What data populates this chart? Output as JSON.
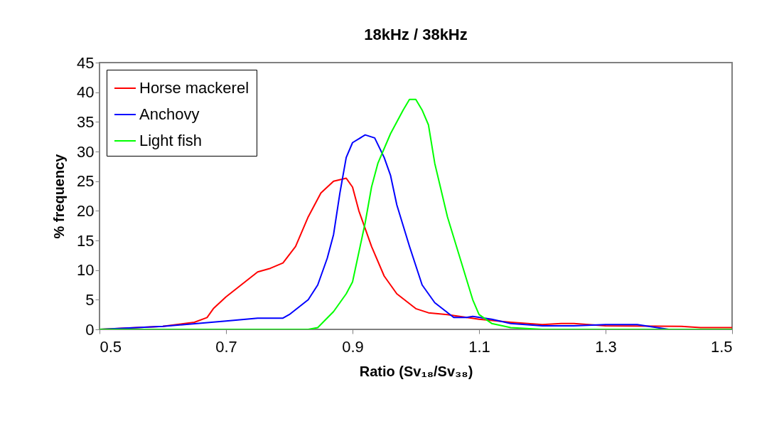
{
  "chart_data": {
    "type": "line",
    "title": "18kHz / 38kHz",
    "xlabel": "Ratio (Sv₁₈/Sv₃₈)",
    "ylabel": "% frequency",
    "xlim": [
      0.5,
      1.5
    ],
    "xticks": [
      0.5,
      0.7,
      0.9,
      1.1,
      1.3,
      1.5
    ],
    "ylim": [
      0,
      45
    ],
    "yticks": [
      0,
      5,
      10,
      15,
      20,
      25,
      30,
      35,
      40,
      45
    ],
    "grid": false,
    "legend": "top left",
    "marker": "none",
    "line_style": "solid",
    "series": [
      {
        "name": "Horse mackerel",
        "color": "#ff0000",
        "x": [
          0.5,
          0.6,
          0.65,
          0.67,
          0.68,
          0.7,
          0.75,
          0.77,
          0.79,
          0.81,
          0.83,
          0.85,
          0.87,
          0.89,
          0.9,
          0.91,
          0.93,
          0.95,
          0.97,
          1.0,
          1.02,
          1.05,
          1.1,
          1.15,
          1.2,
          1.23,
          1.25,
          1.3,
          1.42,
          1.45,
          1.5
        ],
        "values": [
          0,
          0.5,
          1.2,
          2,
          3.5,
          5.5,
          9.7,
          10.3,
          11.2,
          14,
          19,
          23,
          25,
          25.5,
          24,
          20,
          14,
          9,
          6,
          3.5,
          2.8,
          2.5,
          1.7,
          1.2,
          0.8,
          1,
          1,
          0.6,
          0.5,
          0.3,
          0.3
        ]
      },
      {
        "name": "Anchovy",
        "color": "#0000ff",
        "x": [
          0.5,
          0.6,
          0.7,
          0.75,
          0.79,
          0.8,
          0.83,
          0.845,
          0.86,
          0.87,
          0.88,
          0.89,
          0.9,
          0.92,
          0.935,
          0.95,
          0.96,
          0.97,
          0.99,
          1.01,
          1.03,
          1.06,
          1.08,
          1.09,
          1.12,
          1.15,
          1.2,
          1.25,
          1.3,
          1.35,
          1.4,
          1.5
        ],
        "values": [
          0,
          0.5,
          1.4,
          1.9,
          1.9,
          2.5,
          5,
          7.5,
          12,
          16,
          23,
          29,
          31.5,
          32.8,
          32.3,
          29,
          26,
          21,
          14,
          7.5,
          4.5,
          2,
          2,
          2.2,
          1.7,
          1,
          0.6,
          0.6,
          0.8,
          0.8,
          0,
          0
        ]
      },
      {
        "name": "Light fish",
        "color": "#00ff00",
        "x": [
          0.5,
          0.83,
          0.845,
          0.87,
          0.89,
          0.9,
          0.92,
          0.93,
          0.94,
          0.96,
          0.98,
          0.99,
          1.0,
          1.01,
          1.02,
          1.03,
          1.05,
          1.07,
          1.09,
          1.1,
          1.12,
          1.15,
          1.2,
          1.5
        ],
        "values": [
          0,
          0,
          0.3,
          3,
          6,
          8,
          18,
          24,
          28,
          33,
          37,
          38.8,
          38.8,
          37,
          34.5,
          28,
          19,
          12,
          5,
          2.5,
          1,
          0.3,
          0,
          0
        ]
      }
    ]
  }
}
